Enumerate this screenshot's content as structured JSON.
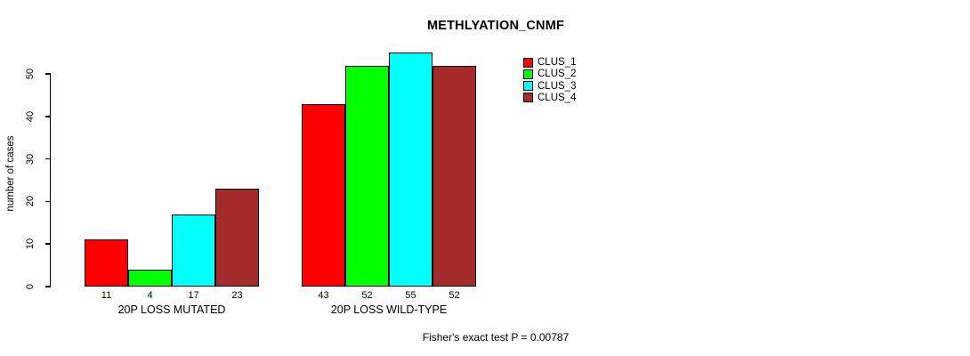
{
  "chart_data": {
    "type": "bar",
    "title": "METHLYATION_CNMF",
    "ylabel": "number of cases",
    "xlabel": "",
    "categories": [
      "20P LOSS MUTATED",
      "20P LOSS WILD-TYPE"
    ],
    "series": [
      {
        "name": "CLUS_1",
        "color": "#FF0000",
        "values": [
          11,
          43
        ]
      },
      {
        "name": "CLUS_2",
        "color": "#00FF00",
        "values": [
          4,
          52
        ]
      },
      {
        "name": "CLUS_3",
        "color": "#00FFFF",
        "values": [
          17,
          55
        ]
      },
      {
        "name": "CLUS_4",
        "color": "#A52A2A",
        "values": [
          23,
          52
        ]
      }
    ],
    "yticks": [
      0,
      10,
      20,
      30,
      40,
      50
    ],
    "ylim": [
      0,
      55
    ],
    "bar_value_labels_shown": true,
    "grid": false,
    "legend_position": "top-right-inside",
    "annotation": "Fisher's exact test P = 0.00787",
    "axis_color": "#000000",
    "background": "#FFFFFF"
  }
}
